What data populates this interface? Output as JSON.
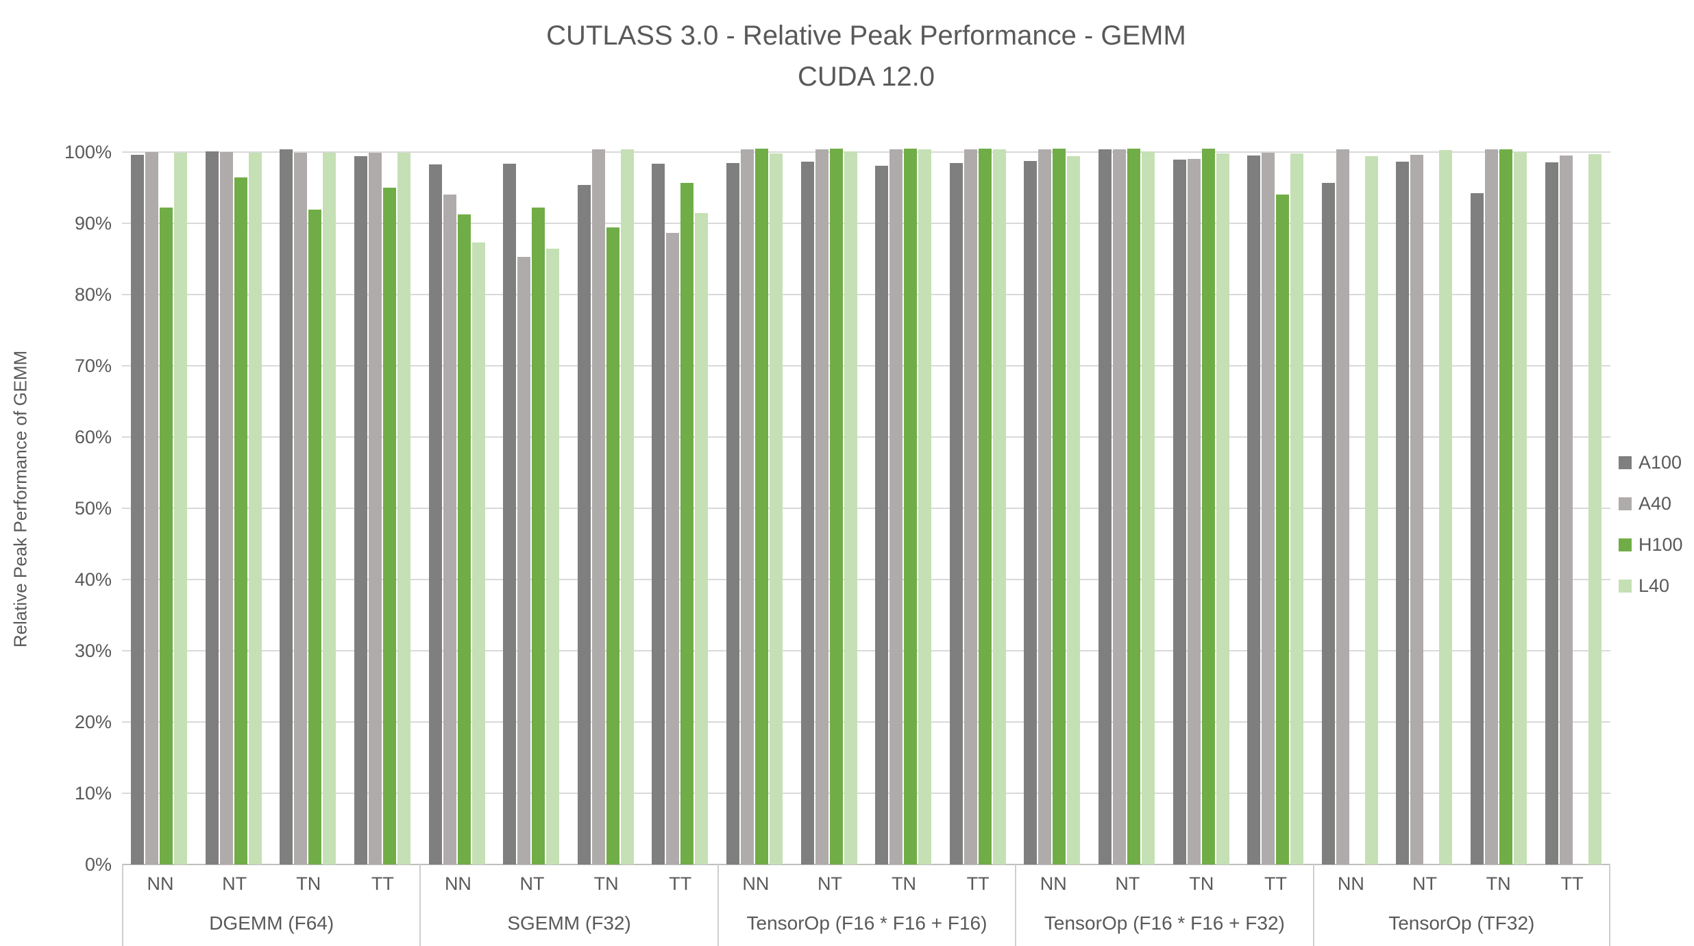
{
  "title": {
    "line1": "CUTLASS 3.0 - Relative Peak Performance - GEMM",
    "line2": "CUDA 12.0"
  },
  "chart_data": {
    "type": "bar",
    "title": "CUTLASS 3.0 - Relative Peak Performance - GEMM",
    "subtitle": "CUDA 12.0",
    "xlabel": "",
    "ylabel": "Relative Peak Performance of GEMM",
    "unit": "percent",
    "ylim": [
      0,
      100
    ],
    "y_tick_labels": [
      "0%",
      "10%",
      "20%",
      "30%",
      "40%",
      "50%",
      "60%",
      "70%",
      "80%",
      "90%",
      "100%"
    ],
    "grid": true,
    "legend_position": "right",
    "series": [
      {
        "name": "A100",
        "color": "#7f7f7f"
      },
      {
        "name": "A40",
        "color": "#afabab"
      },
      {
        "name": "H100",
        "color": "#70ad47"
      },
      {
        "name": "L40",
        "color": "#c5e0b4"
      }
    ],
    "cluster_labels": [
      "NN",
      "NT",
      "TN",
      "TT"
    ],
    "groups": [
      {
        "label": "DGEMM (F64)",
        "clusters": [
          {
            "label": "NN",
            "values": [
              99.6,
              100.0,
              92.2,
              99.9
            ]
          },
          {
            "label": "NT",
            "values": [
              100.1,
              100.0,
              96.4,
              99.9
            ]
          },
          {
            "label": "TN",
            "values": [
              100.4,
              99.9,
              91.9,
              99.9
            ]
          },
          {
            "label": "TT",
            "values": [
              99.4,
              99.9,
              95.0,
              99.9
            ]
          }
        ]
      },
      {
        "label": "SGEMM (F32)",
        "clusters": [
          {
            "label": "NN",
            "values": [
              98.3,
              94.0,
              91.3,
              87.3
            ]
          },
          {
            "label": "NT",
            "values": [
              98.4,
              85.3,
              92.2,
              86.4
            ]
          },
          {
            "label": "TN",
            "values": [
              95.4,
              100.4,
              89.4,
              100.4
            ]
          },
          {
            "label": "TT",
            "values": [
              98.4,
              88.7,
              95.7,
              91.4
            ]
          }
        ]
      },
      {
        "label": "TensorOp (F16 * F16 + F16)",
        "clusters": [
          {
            "label": "NN",
            "values": [
              98.5,
              100.4,
              100.5,
              99.8
            ]
          },
          {
            "label": "NT",
            "values": [
              98.7,
              100.4,
              100.5,
              100.1
            ]
          },
          {
            "label": "TN",
            "values": [
              98.1,
              100.4,
              100.5,
              100.4
            ]
          },
          {
            "label": "TT",
            "values": [
              98.5,
              100.4,
              100.5,
              100.4
            ]
          }
        ]
      },
      {
        "label": "TensorOp (F16 * F16 + F32)",
        "clusters": [
          {
            "label": "NN",
            "values": [
              98.8,
              100.4,
              100.5,
              99.4
            ]
          },
          {
            "label": "NT",
            "values": [
              100.4,
              100.4,
              100.5,
              100.1
            ]
          },
          {
            "label": "TN",
            "values": [
              98.9,
              99.0,
              100.5,
              99.8
            ]
          },
          {
            "label": "TT",
            "values": [
              99.5,
              99.9,
              94.0,
              99.8
            ]
          }
        ]
      },
      {
        "label": "TensorOp (TF32)",
        "clusters": [
          {
            "label": "NN",
            "values": [
              95.7,
              100.4,
              null,
              99.4
            ]
          },
          {
            "label": "NT",
            "values": [
              98.7,
              99.6,
              null,
              100.3
            ]
          },
          {
            "label": "TN",
            "values": [
              94.2,
              100.4,
              100.4,
              100.0
            ]
          },
          {
            "label": "TT",
            "values": [
              98.6,
              99.5,
              null,
              99.7
            ]
          }
        ]
      }
    ]
  },
  "legend": {
    "items": [
      {
        "label": "A100",
        "color": "#7f7f7f"
      },
      {
        "label": "A40",
        "color": "#afabab"
      },
      {
        "label": "H100",
        "color": "#70ad47"
      },
      {
        "label": "L40",
        "color": "#c5e0b4"
      }
    ]
  }
}
